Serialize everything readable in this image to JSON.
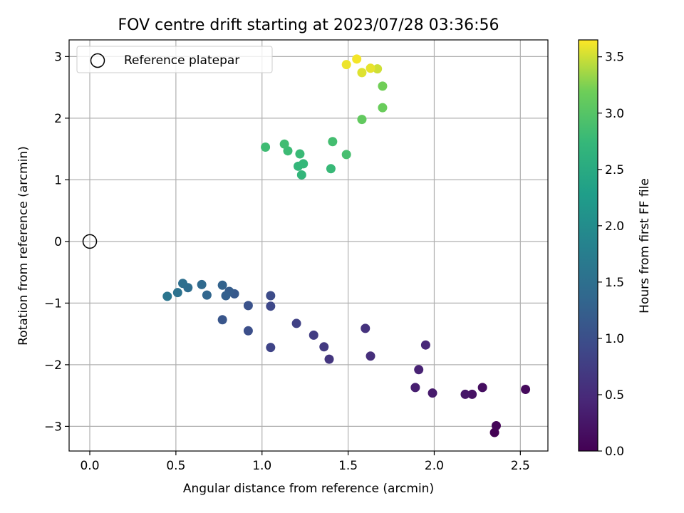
{
  "chart_data": {
    "type": "scatter",
    "title": "FOV centre drift starting at 2023/07/28 03:36:56",
    "xlabel": "Angular distance from reference (arcmin)",
    "ylabel": "Rotation from reference (arcmin)",
    "xlim": [
      -0.12,
      2.66
    ],
    "ylim": [
      -3.4,
      3.27
    ],
    "xticks": [
      0.0,
      0.5,
      1.0,
      1.5,
      2.0,
      2.5
    ],
    "xtick_labels": [
      "0.0",
      "0.5",
      "1.0",
      "1.5",
      "2.0",
      "2.5"
    ],
    "yticks": [
      -3,
      -2,
      -1,
      0,
      1,
      2,
      3
    ],
    "ytick_labels": [
      "−3",
      "−2",
      "−1",
      "0",
      "1",
      "2",
      "3"
    ],
    "grid": true,
    "legend": {
      "placement": "top-left",
      "entries": [
        "Reference platepar"
      ]
    },
    "reference_point": {
      "x": 0.0,
      "y": 0.0,
      "marker": "open-circle"
    },
    "colorbar": {
      "label": "Hours from first FF file",
      "range": [
        0.0,
        3.65
      ],
      "ticks": [
        0.0,
        0.5,
        1.0,
        1.5,
        2.0,
        2.5,
        3.0,
        3.5
      ],
      "tick_labels": [
        "0.0",
        "0.5",
        "1.0",
        "1.5",
        "2.0",
        "2.5",
        "3.0",
        "3.5"
      ],
      "colormap": "viridis"
    },
    "points": [
      {
        "x": 2.35,
        "y": -3.1,
        "t": 0.0
      },
      {
        "x": 2.36,
        "y": -2.99,
        "t": 0.05
      },
      {
        "x": 2.53,
        "y": -2.4,
        "t": 0.1
      },
      {
        "x": 2.28,
        "y": -2.37,
        "t": 0.15
      },
      {
        "x": 2.22,
        "y": -2.48,
        "t": 0.2
      },
      {
        "x": 2.18,
        "y": -2.48,
        "t": 0.25
      },
      {
        "x": 1.99,
        "y": -2.46,
        "t": 0.3
      },
      {
        "x": 1.89,
        "y": -2.37,
        "t": 0.35
      },
      {
        "x": 1.91,
        "y": -2.08,
        "t": 0.4
      },
      {
        "x": 1.95,
        "y": -1.68,
        "t": 0.45
      },
      {
        "x": 1.63,
        "y": -1.86,
        "t": 0.55
      },
      {
        "x": 1.6,
        "y": -1.41,
        "t": 0.6
      },
      {
        "x": 1.39,
        "y": -1.91,
        "t": 0.65
      },
      {
        "x": 1.36,
        "y": -1.71,
        "t": 0.7
      },
      {
        "x": 1.3,
        "y": -1.52,
        "t": 0.75
      },
      {
        "x": 1.2,
        "y": -1.33,
        "t": 0.8
      },
      {
        "x": 1.05,
        "y": -1.72,
        "t": 0.85
      },
      {
        "x": 1.05,
        "y": -1.05,
        "t": 0.9
      },
      {
        "x": 1.05,
        "y": -0.88,
        "t": 0.95
      },
      {
        "x": 0.92,
        "y": -1.45,
        "t": 1.0
      },
      {
        "x": 0.92,
        "y": -1.04,
        "t": 1.05
      },
      {
        "x": 0.77,
        "y": -1.27,
        "t": 1.1
      },
      {
        "x": 0.84,
        "y": -0.85,
        "t": 1.15
      },
      {
        "x": 0.81,
        "y": -0.81,
        "t": 1.2
      },
      {
        "x": 0.79,
        "y": -0.88,
        "t": 1.25
      },
      {
        "x": 0.77,
        "y": -0.71,
        "t": 1.3
      },
      {
        "x": 0.68,
        "y": -0.87,
        "t": 1.35
      },
      {
        "x": 0.65,
        "y": -0.7,
        "t": 1.4
      },
      {
        "x": 0.57,
        "y": -0.75,
        "t": 1.45
      },
      {
        "x": 0.54,
        "y": -0.68,
        "t": 1.5
      },
      {
        "x": 0.51,
        "y": -0.83,
        "t": 1.55
      },
      {
        "x": 0.45,
        "y": -0.89,
        "t": 1.6
      },
      {
        "x": 1.23,
        "y": 1.08,
        "t": 2.7
      },
      {
        "x": 1.21,
        "y": 1.22,
        "t": 2.72
      },
      {
        "x": 1.24,
        "y": 1.26,
        "t": 2.74
      },
      {
        "x": 1.4,
        "y": 1.18,
        "t": 2.76
      },
      {
        "x": 1.22,
        "y": 1.42,
        "t": 2.78
      },
      {
        "x": 1.15,
        "y": 1.47,
        "t": 2.8
      },
      {
        "x": 1.02,
        "y": 1.53,
        "t": 2.82
      },
      {
        "x": 1.13,
        "y": 1.58,
        "t": 2.84
      },
      {
        "x": 1.41,
        "y": 1.62,
        "t": 2.86
      },
      {
        "x": 1.49,
        "y": 1.41,
        "t": 2.88
      },
      {
        "x": 1.58,
        "y": 1.98,
        "t": 3.1
      },
      {
        "x": 1.7,
        "y": 2.17,
        "t": 3.15
      },
      {
        "x": 1.7,
        "y": 2.52,
        "t": 3.2
      },
      {
        "x": 1.67,
        "y": 2.8,
        "t": 3.5
      },
      {
        "x": 1.58,
        "y": 2.74,
        "t": 3.55
      },
      {
        "x": 1.63,
        "y": 2.81,
        "t": 3.58
      },
      {
        "x": 1.49,
        "y": 2.87,
        "t": 3.6
      },
      {
        "x": 1.55,
        "y": 2.96,
        "t": 3.62
      }
    ]
  }
}
